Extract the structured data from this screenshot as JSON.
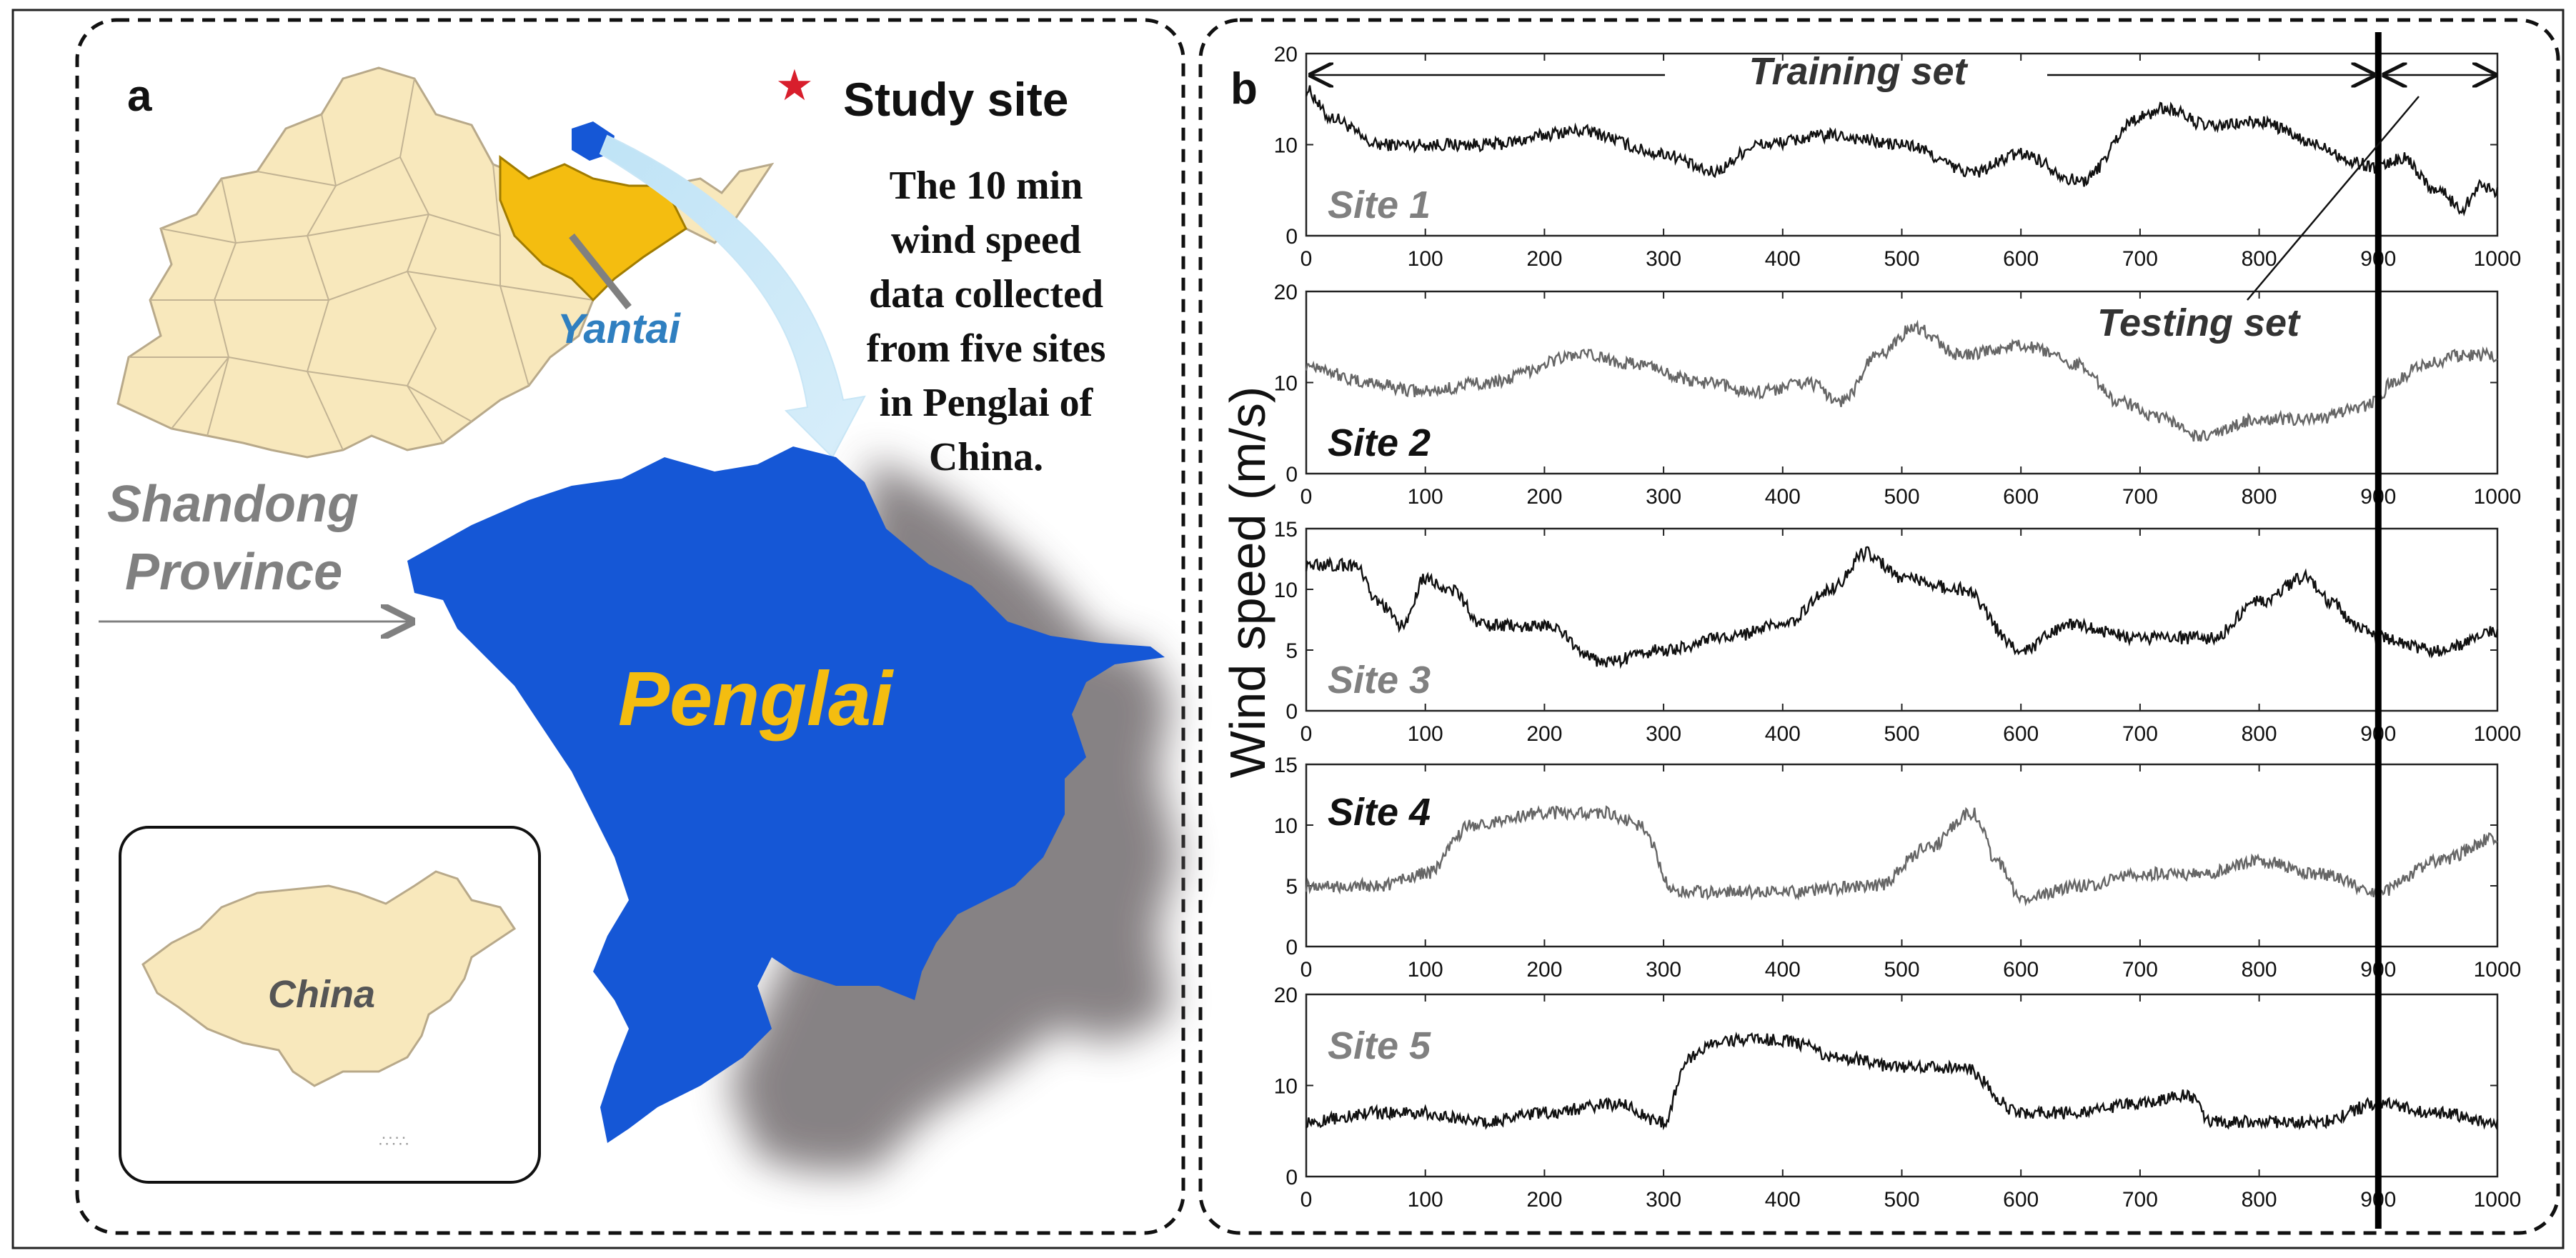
{
  "panel_a": {
    "label": "a",
    "legend_text": "Study site",
    "legend_color": "#d81e2c",
    "description_lines": [
      "The 10 min",
      "wind speed",
      "data collected",
      "from five sites",
      "in Penglai of",
      "China."
    ],
    "yantai_label": "Yantai",
    "province_label_lines": [
      "Shandong",
      "Province"
    ],
    "penglai_label": "Penglai",
    "china_label": "China",
    "colors": {
      "province_fill": "#f8e8bc",
      "yantai_fill": "#f4bd10",
      "penglai_fill": "#1557d6",
      "penglai_label": "#f4bd10",
      "yantai_label": "#2f7fc0",
      "shadow": "#7a7577"
    }
  },
  "panel_b": {
    "label": "b"
  },
  "chart_data": {
    "type": "line",
    "ylabel": "Wind speed (m/s)",
    "xlim": [
      0,
      1000
    ],
    "x_ticks": [
      0,
      100,
      200,
      300,
      400,
      500,
      600,
      700,
      800,
      900,
      1000
    ],
    "split_at": 900,
    "annotations": {
      "training": "Training set",
      "testing": "Testing set"
    },
    "series": [
      {
        "name": "Site 1",
        "ylim": [
          0,
          20
        ],
        "y_ticks": [
          0,
          10,
          20
        ],
        "stroke": "#111111",
        "label_color": "#808080",
        "knots": [
          [
            0,
            16
          ],
          [
            20,
            13
          ],
          [
            60,
            10
          ],
          [
            150,
            10
          ],
          [
            230,
            11.5
          ],
          [
            300,
            9
          ],
          [
            340,
            7
          ],
          [
            380,
            10
          ],
          [
            440,
            11
          ],
          [
            500,
            10
          ],
          [
            560,
            7
          ],
          [
            600,
            9
          ],
          [
            650,
            6
          ],
          [
            700,
            13
          ],
          [
            720,
            14
          ],
          [
            760,
            12
          ],
          [
            800,
            12.5
          ],
          [
            850,
            10
          ],
          [
            880,
            8
          ],
          [
            900,
            7.5
          ],
          [
            920,
            8.5
          ],
          [
            950,
            5
          ],
          [
            970,
            3
          ],
          [
            985,
            5.5
          ],
          [
            1000,
            5
          ]
        ]
      },
      {
        "name": "Site 2",
        "ylim": [
          0,
          20
        ],
        "y_ticks": [
          0,
          10,
          20
        ],
        "stroke": "#666666",
        "label_color": "#111111",
        "knots": [
          [
            0,
            12
          ],
          [
            50,
            10
          ],
          [
            100,
            9
          ],
          [
            150,
            10
          ],
          [
            230,
            13
          ],
          [
            280,
            12
          ],
          [
            330,
            10
          ],
          [
            380,
            9
          ],
          [
            420,
            10
          ],
          [
            450,
            8
          ],
          [
            480,
            13
          ],
          [
            510,
            16
          ],
          [
            550,
            13
          ],
          [
            600,
            14
          ],
          [
            650,
            12
          ],
          [
            680,
            8
          ],
          [
            720,
            6
          ],
          [
            750,
            4
          ],
          [
            800,
            6
          ],
          [
            850,
            6
          ],
          [
            880,
            7
          ],
          [
            900,
            8
          ],
          [
            910,
            10
          ],
          [
            940,
            12
          ],
          [
            970,
            13
          ],
          [
            1000,
            13
          ]
        ]
      },
      {
        "name": "Site 3",
        "ylim": [
          0,
          15
        ],
        "y_ticks": [
          0,
          5,
          10,
          15
        ],
        "stroke": "#111111",
        "label_color": "#808080",
        "knots": [
          [
            0,
            12
          ],
          [
            40,
            12
          ],
          [
            60,
            9
          ],
          [
            80,
            7
          ],
          [
            100,
            11
          ],
          [
            120,
            10
          ],
          [
            150,
            7
          ],
          [
            200,
            7
          ],
          [
            250,
            4
          ],
          [
            300,
            5
          ],
          [
            350,
            6
          ],
          [
            400,
            7
          ],
          [
            440,
            10
          ],
          [
            470,
            13
          ],
          [
            500,
            11
          ],
          [
            550,
            10
          ],
          [
            600,
            5
          ],
          [
            640,
            7
          ],
          [
            700,
            6
          ],
          [
            760,
            6
          ],
          [
            800,
            9
          ],
          [
            840,
            11
          ],
          [
            860,
            9
          ],
          [
            880,
            7
          ],
          [
            900,
            6
          ],
          [
            950,
            5
          ],
          [
            1000,
            6.5
          ]
        ]
      },
      {
        "name": "Site 4",
        "ylim": [
          0,
          15
        ],
        "y_ticks": [
          0,
          5,
          10,
          15
        ],
        "stroke": "#666666",
        "label_color": "#111111",
        "knots": [
          [
            0,
            5
          ],
          [
            60,
            5
          ],
          [
            100,
            6
          ],
          [
            140,
            10
          ],
          [
            200,
            11
          ],
          [
            250,
            11
          ],
          [
            280,
            10
          ],
          [
            310,
            4.5
          ],
          [
            400,
            4.5
          ],
          [
            480,
            5
          ],
          [
            520,
            8
          ],
          [
            560,
            11
          ],
          [
            580,
            7
          ],
          [
            600,
            4
          ],
          [
            650,
            5
          ],
          [
            700,
            6
          ],
          [
            750,
            6
          ],
          [
            800,
            7
          ],
          [
            850,
            6
          ],
          [
            900,
            4.5
          ],
          [
            950,
            7
          ],
          [
            1000,
            9
          ]
        ]
      },
      {
        "name": "Site 5",
        "ylim": [
          0,
          20
        ],
        "y_ticks": [
          0,
          10,
          20
        ],
        "stroke": "#111111",
        "label_color": "#808080",
        "knots": [
          [
            0,
            6
          ],
          [
            60,
            7
          ],
          [
            100,
            7
          ],
          [
            150,
            6
          ],
          [
            200,
            7
          ],
          [
            260,
            8
          ],
          [
            300,
            6
          ],
          [
            320,
            13
          ],
          [
            350,
            15
          ],
          [
            400,
            15
          ],
          [
            450,
            13
          ],
          [
            500,
            12
          ],
          [
            550,
            12
          ],
          [
            600,
            7
          ],
          [
            650,
            7
          ],
          [
            700,
            8
          ],
          [
            740,
            9
          ],
          [
            760,
            6
          ],
          [
            800,
            6
          ],
          [
            850,
            6
          ],
          [
            900,
            8
          ],
          [
            950,
            7
          ],
          [
            1000,
            6
          ]
        ]
      }
    ]
  }
}
